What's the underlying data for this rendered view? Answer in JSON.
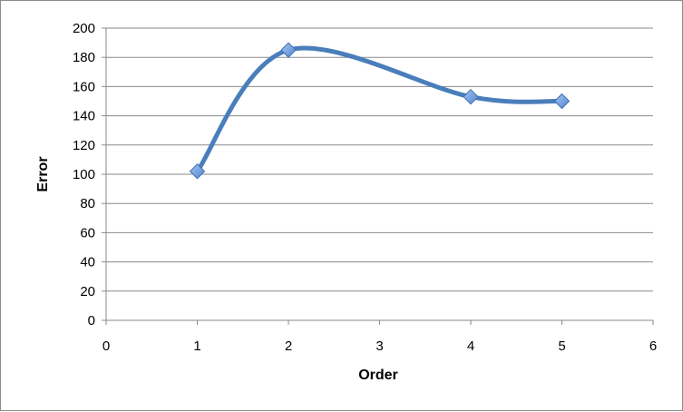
{
  "chart_data": {
    "type": "line",
    "title": "",
    "xlabel": "Order",
    "ylabel": "Error",
    "xlim": [
      0,
      6
    ],
    "ylim": [
      0,
      200
    ],
    "x_ticks": [
      0,
      1,
      2,
      3,
      4,
      5,
      6
    ],
    "x_tick_labels": [
      "0",
      "1",
      "2",
      "3",
      "4",
      "5",
      "6"
    ],
    "y_ticks": [
      0,
      20,
      40,
      60,
      80,
      100,
      120,
      140,
      160,
      180,
      200
    ],
    "y_tick_labels": [
      "0",
      "20",
      "40",
      "60",
      "80",
      "100",
      "120",
      "140",
      "160",
      "180",
      "200"
    ],
    "grid": "horizontal",
    "legend": "none",
    "smooth": true,
    "series": [
      {
        "color": "#4a7ebb",
        "marker": "diamond",
        "marker_color": "#6a9be0",
        "points": [
          {
            "x": 1,
            "y": 102
          },
          {
            "x": 2,
            "y": 185
          },
          {
            "x": 4,
            "y": 153
          },
          {
            "x": 5,
            "y": 150
          }
        ]
      }
    ]
  }
}
